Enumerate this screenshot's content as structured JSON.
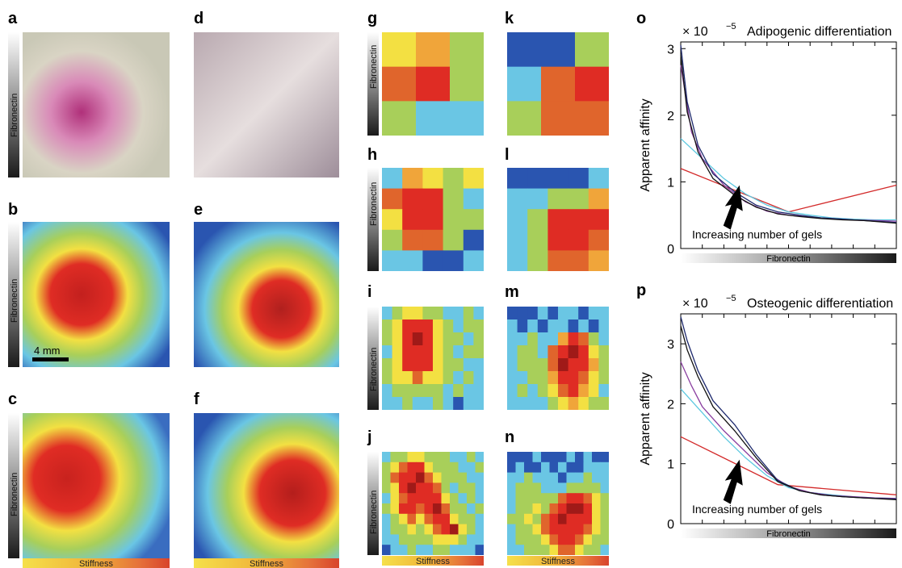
{
  "labels": {
    "panel_letters": [
      "a",
      "b",
      "c",
      "d",
      "e",
      "f",
      "g",
      "h",
      "i",
      "j",
      "k",
      "l",
      "m",
      "n",
      "o",
      "p"
    ],
    "fibronectin": "Fibronectin",
    "stiffness": "Stiffness",
    "scale_bar": "4 mm"
  },
  "colors": {
    "heat_low": "#2a55b0",
    "heat_mid_low": "#6ac6e4",
    "heat_mid": "#a8cf5a",
    "heat_mid_high": "#f3e042",
    "heat_high": "#df2c24",
    "heat_peak": "#a01a18",
    "curve_red": "#d32a2a",
    "curve_cyan": "#5cc8e0",
    "curve_purple": "#8a3fa0",
    "curve_navy": "#1e2a6e",
    "curve_black": "#111111"
  },
  "chart_data": [
    {
      "type": "line",
      "panel": "o",
      "title": "Adipogenic differentiation",
      "scale_prefix": "× 10",
      "scale_exponent": "−5",
      "xlabel": "Fibronectin",
      "ylabel": "Apparent affinity",
      "ylim": [
        0,
        3.1
      ],
      "xlim": [
        0,
        1
      ],
      "yticks": [
        0,
        1,
        2,
        3
      ],
      "annotation": "Increasing number of gels",
      "series": [
        {
          "color": "#d32a2a",
          "x": [
            0,
            0.5,
            1
          ],
          "y": [
            1.2,
            0.55,
            0.95
          ]
        },
        {
          "color": "#5cc8e0",
          "x": [
            0,
            0.1,
            0.2,
            0.3,
            0.4,
            0.5,
            0.6,
            0.7,
            0.8,
            0.9,
            1
          ],
          "y": [
            1.65,
            1.35,
            1.05,
            0.82,
            0.65,
            0.55,
            0.5,
            0.46,
            0.44,
            0.43,
            0.43
          ]
        },
        {
          "color": "#8a3fa0",
          "x": [
            0,
            0.05,
            0.1,
            0.2,
            0.3,
            0.4,
            0.5,
            0.6,
            0.7,
            0.8,
            0.9,
            1
          ],
          "y": [
            2.75,
            1.75,
            1.35,
            0.95,
            0.7,
            0.56,
            0.5,
            0.47,
            0.45,
            0.43,
            0.42,
            0.41
          ]
        },
        {
          "color": "#1e2a6e",
          "x": [
            0,
            0.03,
            0.08,
            0.15,
            0.25,
            0.35,
            0.45,
            0.55,
            0.65,
            0.75,
            0.85,
            1
          ],
          "y": [
            3.05,
            2.2,
            1.55,
            1.12,
            0.85,
            0.65,
            0.55,
            0.5,
            0.46,
            0.44,
            0.42,
            0.39
          ]
        },
        {
          "color": "#111111",
          "x": [
            0,
            0.03,
            0.08,
            0.15,
            0.25,
            0.35,
            0.45,
            0.55,
            0.65,
            0.75,
            0.85,
            1
          ],
          "y": [
            2.9,
            2.05,
            1.45,
            1.05,
            0.8,
            0.62,
            0.52,
            0.48,
            0.45,
            0.43,
            0.42,
            0.38
          ]
        }
      ]
    },
    {
      "type": "line",
      "panel": "p",
      "title": "Osteogenic differentiation",
      "scale_prefix": "× 10",
      "scale_exponent": "−5",
      "xlabel": "Fibronectin",
      "ylabel": "Apparent affinity",
      "ylim": [
        0,
        3.5
      ],
      "xlim": [
        0,
        1
      ],
      "yticks": [
        0,
        1,
        2,
        3
      ],
      "annotation": "Increasing number of gels",
      "series": [
        {
          "color": "#d32a2a",
          "x": [
            0,
            0.45,
            1
          ],
          "y": [
            1.45,
            0.65,
            0.48
          ]
        },
        {
          "color": "#5cc8e0",
          "x": [
            0,
            0.1,
            0.2,
            0.3,
            0.4,
            0.5,
            0.6,
            0.7,
            0.8,
            0.9,
            1
          ],
          "y": [
            2.25,
            1.85,
            1.45,
            1.1,
            0.8,
            0.6,
            0.52,
            0.48,
            0.45,
            0.43,
            0.42
          ]
        },
        {
          "color": "#8a3fa0",
          "x": [
            0,
            0.05,
            0.1,
            0.2,
            0.3,
            0.4,
            0.5,
            0.6,
            0.7,
            0.8,
            0.9,
            1
          ],
          "y": [
            2.7,
            2.3,
            1.95,
            1.55,
            1.2,
            0.85,
            0.62,
            0.52,
            0.47,
            0.45,
            0.43,
            0.42
          ]
        },
        {
          "color": "#1e2a6e",
          "x": [
            0,
            0.03,
            0.08,
            0.15,
            0.25,
            0.35,
            0.45,
            0.55,
            0.65,
            0.75,
            0.85,
            1
          ],
          "y": [
            3.45,
            3.05,
            2.55,
            2.05,
            1.65,
            1.15,
            0.72,
            0.55,
            0.48,
            0.45,
            0.43,
            0.41
          ]
        },
        {
          "color": "#111111",
          "x": [
            0,
            0.03,
            0.08,
            0.15,
            0.25,
            0.35,
            0.45,
            0.55,
            0.65,
            0.75,
            0.85,
            1
          ],
          "y": [
            3.3,
            2.9,
            2.45,
            1.95,
            1.55,
            1.1,
            0.7,
            0.55,
            0.48,
            0.45,
            0.43,
            0.4
          ]
        }
      ]
    }
  ]
}
